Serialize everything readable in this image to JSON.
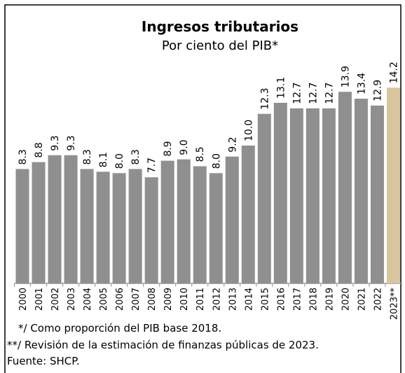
{
  "chart_data": {
    "type": "bar",
    "title": "Ingresos tributarios",
    "subtitle": "Por ciento del PIB*",
    "categories": [
      "2000",
      "2001",
      "2002",
      "2003",
      "2004",
      "2005",
      "2006",
      "2007",
      "2008",
      "2009",
      "2010",
      "2011",
      "2012",
      "2013",
      "2014",
      "2015",
      "2016",
      "2017",
      "2018",
      "2019",
      "2020",
      "2021",
      "2022",
      "2023**"
    ],
    "values": [
      8.3,
      8.8,
      9.3,
      9.3,
      8.3,
      8.1,
      8.0,
      8.3,
      7.7,
      8.9,
      9.0,
      8.5,
      8.0,
      9.2,
      10.0,
      12.3,
      13.1,
      12.7,
      12.7,
      12.7,
      13.9,
      13.4,
      12.9,
      14.2
    ],
    "value_labels": [
      "8.3",
      "8.8",
      "9.3",
      "9.3",
      "8.3",
      "8.1",
      "8.0",
      "8.3",
      "7.7",
      "8.9",
      "9.0",
      "8.5",
      "8.0",
      "9.2",
      "10.0",
      "12.3",
      "13.1",
      "12.7",
      "12.7",
      "12.7",
      "13.9",
      "13.4",
      "12.9",
      "14.2"
    ],
    "colors": [
      "#8f8f8f",
      "#8f8f8f",
      "#8f8f8f",
      "#8f8f8f",
      "#8f8f8f",
      "#8f8f8f",
      "#8f8f8f",
      "#8f8f8f",
      "#8f8f8f",
      "#8f8f8f",
      "#8f8f8f",
      "#8f8f8f",
      "#8f8f8f",
      "#8f8f8f",
      "#8f8f8f",
      "#8f8f8f",
      "#8f8f8f",
      "#8f8f8f",
      "#8f8f8f",
      "#8f8f8f",
      "#8f8f8f",
      "#8f8f8f",
      "#8f8f8f",
      "#d9c59c"
    ],
    "footnotes": [
      "*/ Como proporción del PIB base 2018.",
      "**/ Revisión de la estimación de finanzas públicas de 2023.",
      "Fuente: SHCP."
    ]
  }
}
